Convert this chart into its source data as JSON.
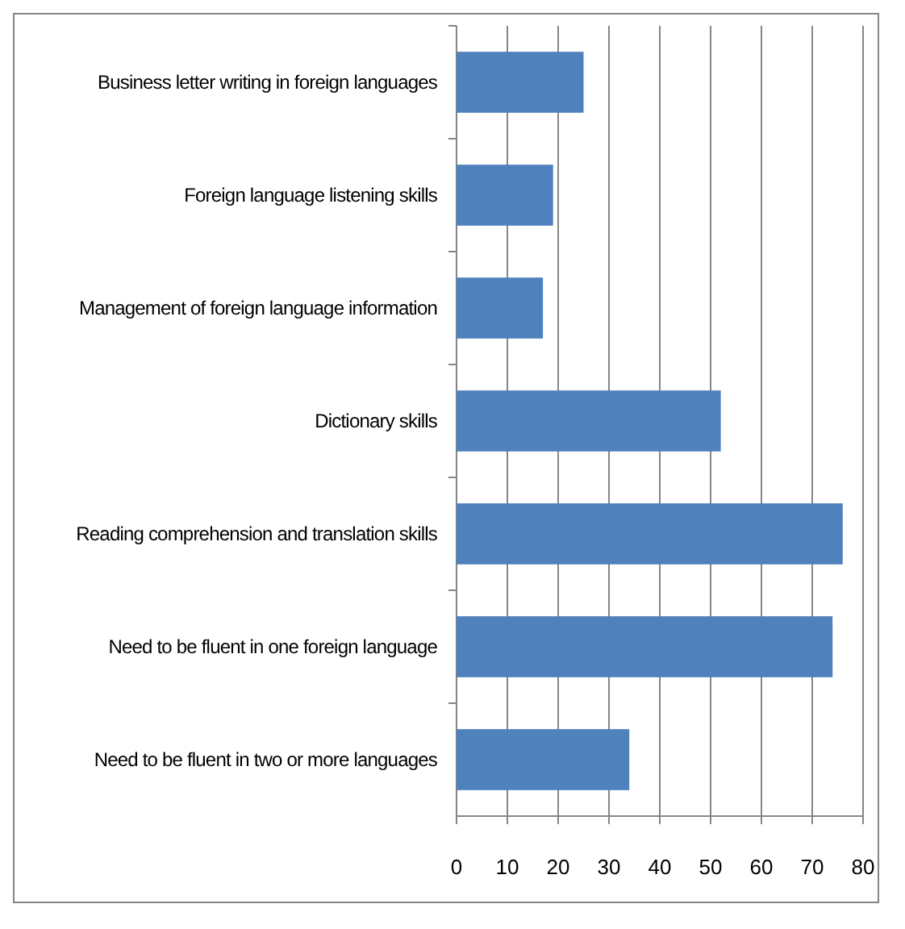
{
  "chart_data": {
    "type": "bar",
    "orientation": "horizontal",
    "categories": [
      "Business letter writing in foreign languages",
      "Foreign language listening skills",
      "Management of foreign language information",
      "Dictionary skills",
      "Reading comprehension and translation skills",
      "Need to be fluent in one foreign language",
      "Need to be fluent in two or more languages"
    ],
    "values": [
      25,
      19,
      17,
      52,
      76,
      74,
      34
    ],
    "color": "#4f81bd",
    "xlim": [
      0,
      80
    ],
    "xticks": [
      0,
      10,
      20,
      30,
      40,
      50,
      60,
      70,
      80
    ],
    "grid": "x"
  }
}
